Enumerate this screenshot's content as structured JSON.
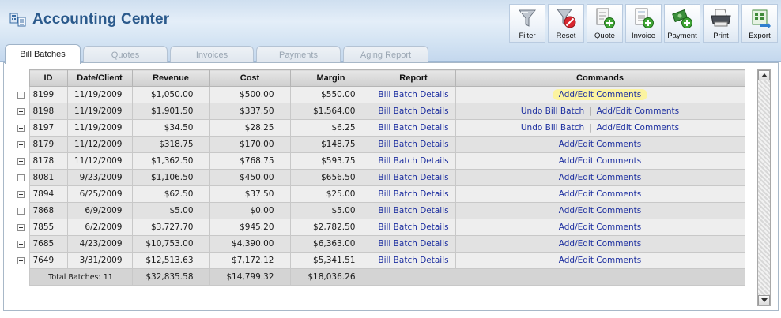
{
  "app": {
    "title": "Accounting Center"
  },
  "toolbar": [
    {
      "label": "Filter",
      "icon": "filter-icon"
    },
    {
      "label": "Reset",
      "icon": "reset-icon"
    },
    {
      "label": "Quote",
      "icon": "quote-icon"
    },
    {
      "label": "Invoice",
      "icon": "invoice-icon"
    },
    {
      "label": "Payment",
      "icon": "payment-icon"
    },
    {
      "label": "Print",
      "icon": "printer-icon"
    },
    {
      "label": "Export",
      "icon": "export-icon"
    }
  ],
  "tabs": [
    {
      "label": "Bill Batches",
      "active": true
    },
    {
      "label": "Quotes",
      "active": false
    },
    {
      "label": "Invoices",
      "active": false
    },
    {
      "label": "Payments",
      "active": false
    },
    {
      "label": "Aging Report",
      "active": false
    }
  ],
  "table": {
    "headers": [
      "ID",
      "Date/Client",
      "Revenue",
      "Cost",
      "Margin",
      "Report",
      "Commands"
    ],
    "rows": [
      {
        "id": "8199",
        "date": "11/19/2009",
        "revenue": "$1,050.00",
        "cost": "$500.00",
        "margin": "$550.00",
        "report": "Bill Batch Details",
        "undo": "",
        "comments": "Add/Edit Comments"
      },
      {
        "id": "8198",
        "date": "11/19/2009",
        "revenue": "$1,901.50",
        "cost": "$337.50",
        "margin": "$1,564.00",
        "report": "Bill Batch Details",
        "undo": "Undo Bill Batch",
        "comments": "Add/Edit Comments"
      },
      {
        "id": "8197",
        "date": "11/19/2009",
        "revenue": "$34.50",
        "cost": "$28.25",
        "margin": "$6.25",
        "report": "Bill Batch Details",
        "undo": "Undo Bill Batch",
        "comments": "Add/Edit Comments"
      },
      {
        "id": "8179",
        "date": "11/12/2009",
        "revenue": "$318.75",
        "cost": "$170.00",
        "margin": "$148.75",
        "report": "Bill Batch Details",
        "undo": "",
        "comments": "Add/Edit Comments"
      },
      {
        "id": "8178",
        "date": "11/12/2009",
        "revenue": "$1,362.50",
        "cost": "$768.75",
        "margin": "$593.75",
        "report": "Bill Batch Details",
        "undo": "",
        "comments": "Add/Edit Comments"
      },
      {
        "id": "8081",
        "date": "9/23/2009",
        "revenue": "$1,106.50",
        "cost": "$450.00",
        "margin": "$656.50",
        "report": "Bill Batch Details",
        "undo": "",
        "comments": "Add/Edit Comments"
      },
      {
        "id": "7894",
        "date": "6/25/2009",
        "revenue": "$62.50",
        "cost": "$37.50",
        "margin": "$25.00",
        "report": "Bill Batch Details",
        "undo": "",
        "comments": "Add/Edit Comments"
      },
      {
        "id": "7868",
        "date": "6/9/2009",
        "revenue": "$5.00",
        "cost": "$0.00",
        "margin": "$5.00",
        "report": "Bill Batch Details",
        "undo": "",
        "comments": "Add/Edit Comments"
      },
      {
        "id": "7855",
        "date": "6/2/2009",
        "revenue": "$3,727.70",
        "cost": "$945.20",
        "margin": "$2,782.50",
        "report": "Bill Batch Details",
        "undo": "",
        "comments": "Add/Edit Comments"
      },
      {
        "id": "7685",
        "date": "4/23/2009",
        "revenue": "$10,753.00",
        "cost": "$4,390.00",
        "margin": "$6,363.00",
        "report": "Bill Batch Details",
        "undo": "",
        "comments": "Add/Edit Comments"
      },
      {
        "id": "7649",
        "date": "3/31/2009",
        "revenue": "$12,513.63",
        "cost": "$7,172.12",
        "margin": "$5,341.51",
        "report": "Bill Batch Details",
        "undo": "",
        "comments": "Add/Edit Comments"
      }
    ],
    "totals": {
      "label": "Total Batches: 11",
      "revenue": "$32,835.58",
      "cost": "$14,799.32",
      "margin": "$18,036.26"
    },
    "separator": "|"
  },
  "colors": {
    "title": "#2b5a8c",
    "link": "#1d2fa0",
    "highlight": "#fbf3a0"
  }
}
